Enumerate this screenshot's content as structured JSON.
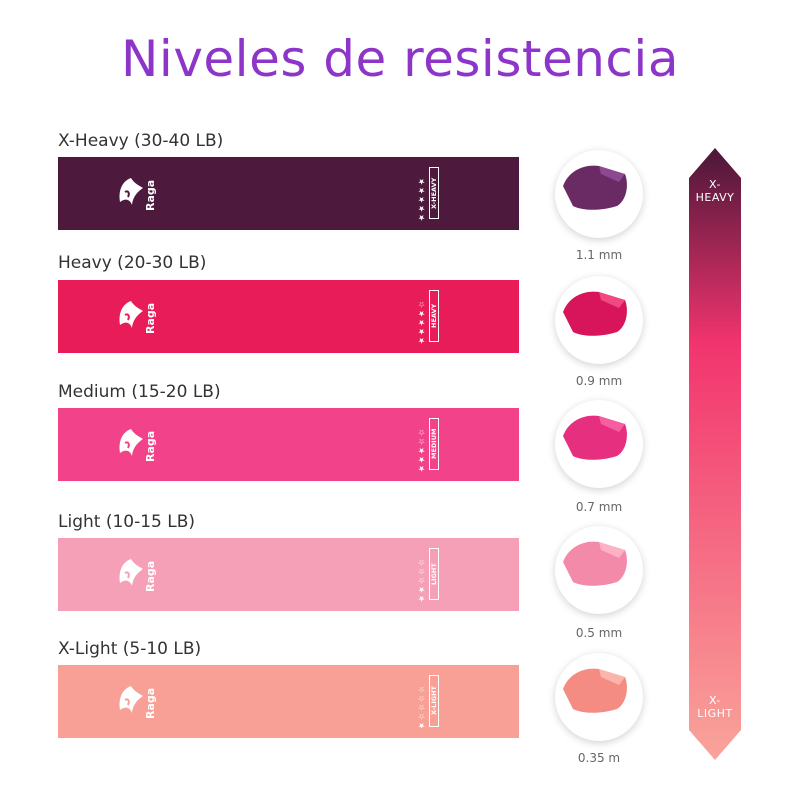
{
  "title": "Niveles de resistencia",
  "bands": [
    {
      "label": "X-Heavy (30-40 LB)",
      "brand": "Raga",
      "stars": "★★★★★",
      "level": "X-HEAVY",
      "thickness": "1.1 mm",
      "color": "#4d1a3e",
      "edge": "#6a2a63"
    },
    {
      "label": "Heavy (20-30 LB)",
      "brand": "Raga",
      "stars": "★★★★☆",
      "level": "HEAVY",
      "thickness": "0.9 mm",
      "color": "#e81c58",
      "edge": "#d8145a"
    },
    {
      "label": "Medium (15-20 LB)",
      "brand": "Raga",
      "stars": "★★★☆☆",
      "level": "MEDIUM",
      "thickness": "0.7 mm",
      "color": "#f2438a",
      "edge": "#e72f80"
    },
    {
      "label": "Light (10-15 LB)",
      "brand": "Raga",
      "stars": "★★☆☆☆",
      "level": "LIGHT",
      "thickness": "0.5 mm",
      "color": "#f6a0b8",
      "edge": "#f48aa9"
    },
    {
      "label": "X-Light (5-10 LB)",
      "brand": "Raga",
      "stars": "★☆☆☆☆",
      "level": "X-LIGHT",
      "thickness": "0.35 m",
      "color": "#f8a095",
      "edge": "#f58c83"
    }
  ],
  "scale": {
    "top_label_1": "X-",
    "top_label_2": "HEAVY",
    "bottom_label_1": "X-",
    "bottom_label_2": "LIGHT",
    "color_top": "#4a1738",
    "color_mid": "#f2346e",
    "color_bottom": "#f9a49a"
  }
}
